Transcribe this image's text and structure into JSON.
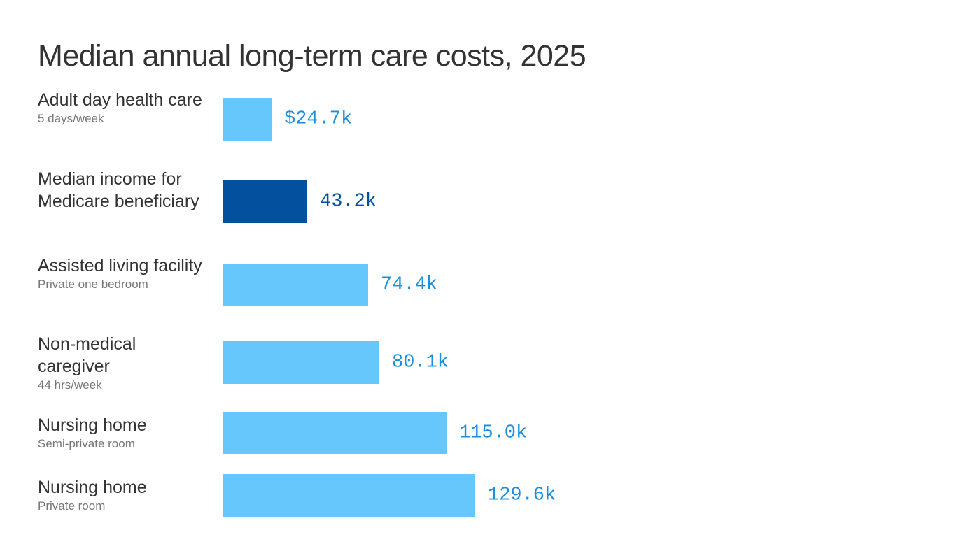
{
  "chart_data": {
    "type": "bar",
    "orientation": "horizontal",
    "title": "Median annual long-term care costs, 2025",
    "categories": [
      {
        "label": "Adult day health care",
        "sublabel": "5 days/week"
      },
      {
        "label": "Median income for Medicare beneficiary",
        "sublabel": ""
      },
      {
        "label": "Assisted living facility",
        "sublabel": "Private one bedroom"
      },
      {
        "label": "Non-medical caregiver",
        "sublabel": "44 hrs/week"
      },
      {
        "label": "Nursing home",
        "sublabel": "Semi-private room"
      },
      {
        "label": "Nursing home",
        "sublabel": "Private room"
      }
    ],
    "values": [
      24.7,
      43.2,
      74.4,
      80.1,
      115.0,
      129.6
    ],
    "value_labels": [
      "$24.7k",
      "43.2k",
      "74.4k",
      "80.1k",
      "115.0k",
      "129.6k"
    ],
    "unit": "thousand dollars",
    "colors": {
      "default_bar": "#66c7fc",
      "highlight_bar": "#03509f",
      "default_label": "#1a8fe0",
      "highlight_label": "#03509f"
    },
    "highlight_index": 1,
    "xlim": [
      0,
      129.6
    ],
    "grid": false,
    "legend": "none"
  }
}
